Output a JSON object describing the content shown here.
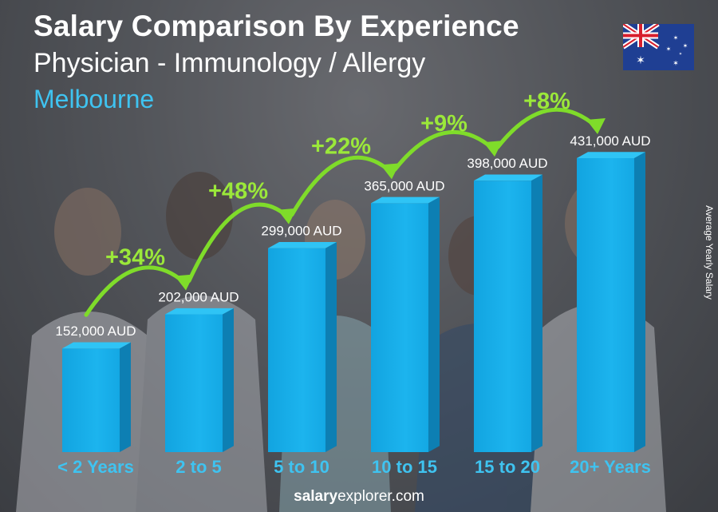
{
  "header": {
    "title": "Salary Comparison By Experience",
    "subtitle": "Physician - Immunology / Allergy",
    "city": "Melbourne"
  },
  "axis_label": "Average Yearly Salary",
  "footer": {
    "brand_bold": "salary",
    "brand_rest": "explorer.com"
  },
  "flag": "australia-flag",
  "colors": {
    "bar": "#1ab0ea",
    "percent": "#9be83a",
    "city": "#3fc3f0",
    "category": "#3fc3f0"
  },
  "chart_data": {
    "type": "bar",
    "categories": [
      "< 2 Years",
      "2 to 5",
      "5 to 10",
      "10 to 15",
      "15 to 20",
      "20+ Years"
    ],
    "values": [
      152000,
      202000,
      299000,
      365000,
      398000,
      431000
    ],
    "value_labels": [
      "152,000 AUD",
      "202,000 AUD",
      "299,000 AUD",
      "365,000 AUD",
      "398,000 AUD",
      "431,000 AUD"
    ],
    "increases": [
      "+34%",
      "+48%",
      "+22%",
      "+9%",
      "+8%"
    ],
    "title": "Salary Comparison By Experience",
    "ylabel": "Average Yearly Salary",
    "currency": "AUD"
  }
}
